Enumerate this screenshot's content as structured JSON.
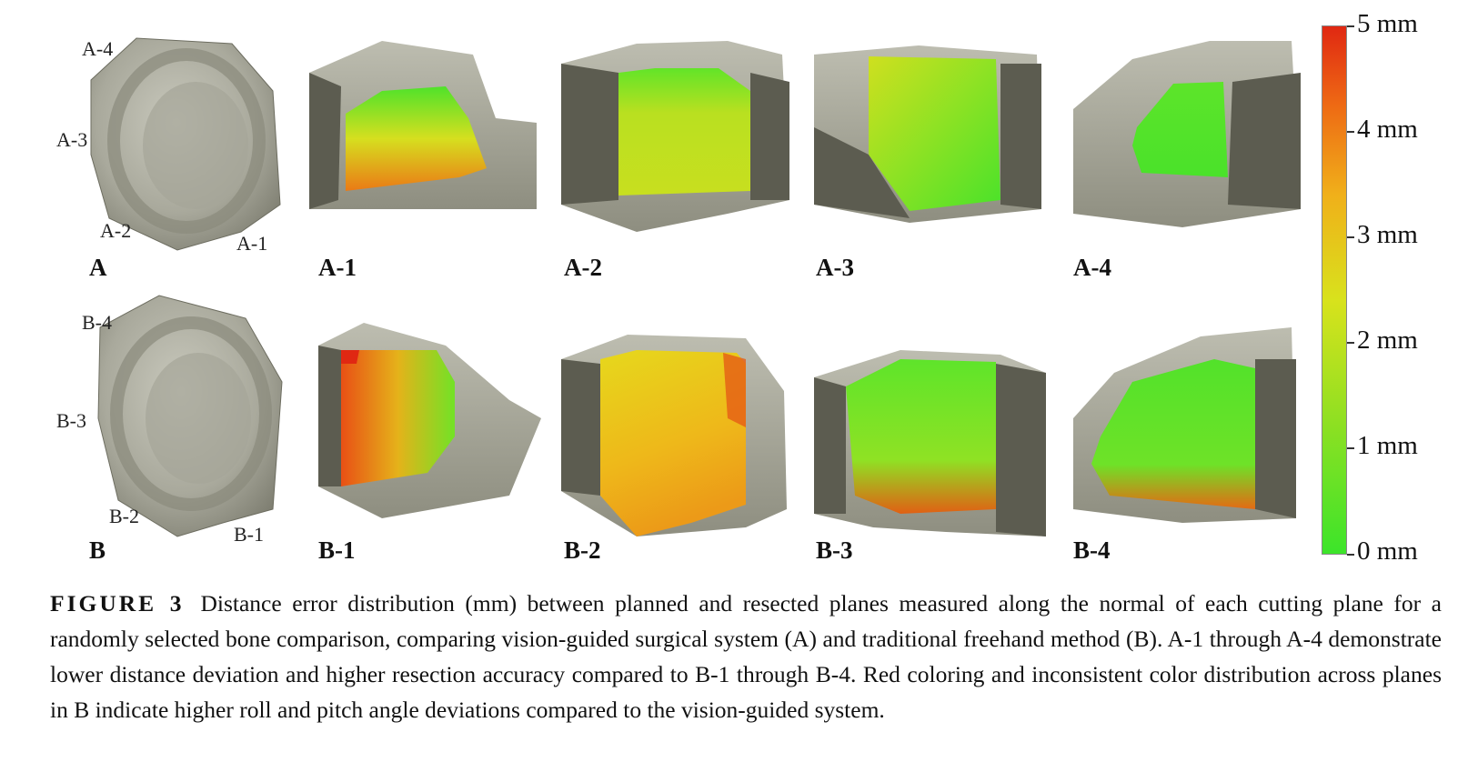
{
  "panels": {
    "row_a": {
      "overview_label": "A",
      "plane_tags": [
        "A-4",
        "A-3",
        "A-2",
        "A-1"
      ],
      "sub_labels": [
        "A-1",
        "A-2",
        "A-3",
        "A-4"
      ]
    },
    "row_b": {
      "overview_label": "B",
      "plane_tags": [
        "B-4",
        "B-3",
        "B-2",
        "B-1"
      ],
      "sub_labels": [
        "B-1",
        "B-2",
        "B-3",
        "B-4"
      ]
    }
  },
  "colorbar": {
    "ticks": [
      "5 mm",
      "4 mm",
      "3 mm",
      "2 mm",
      "1 mm",
      "0 mm"
    ],
    "colors": {
      "low": "#3ce42a",
      "mid": "#d8e21c",
      "high": "#e02812"
    }
  },
  "caption": {
    "label": "FIGURE 3",
    "text": "Distance error distribution (mm) between planned and resected planes measured along the normal of each cutting plane for a randomly selected bone comparison, comparing vision-guided surgical system (A) and traditional freehand method (B). A-1 through A-4 demonstrate lower distance deviation and higher resection accuracy compared to B-1 through B-4. Red coloring and inconsistent color distribution across planes in B indicate higher roll and pitch angle deviations compared to the vision-guided system."
  }
}
